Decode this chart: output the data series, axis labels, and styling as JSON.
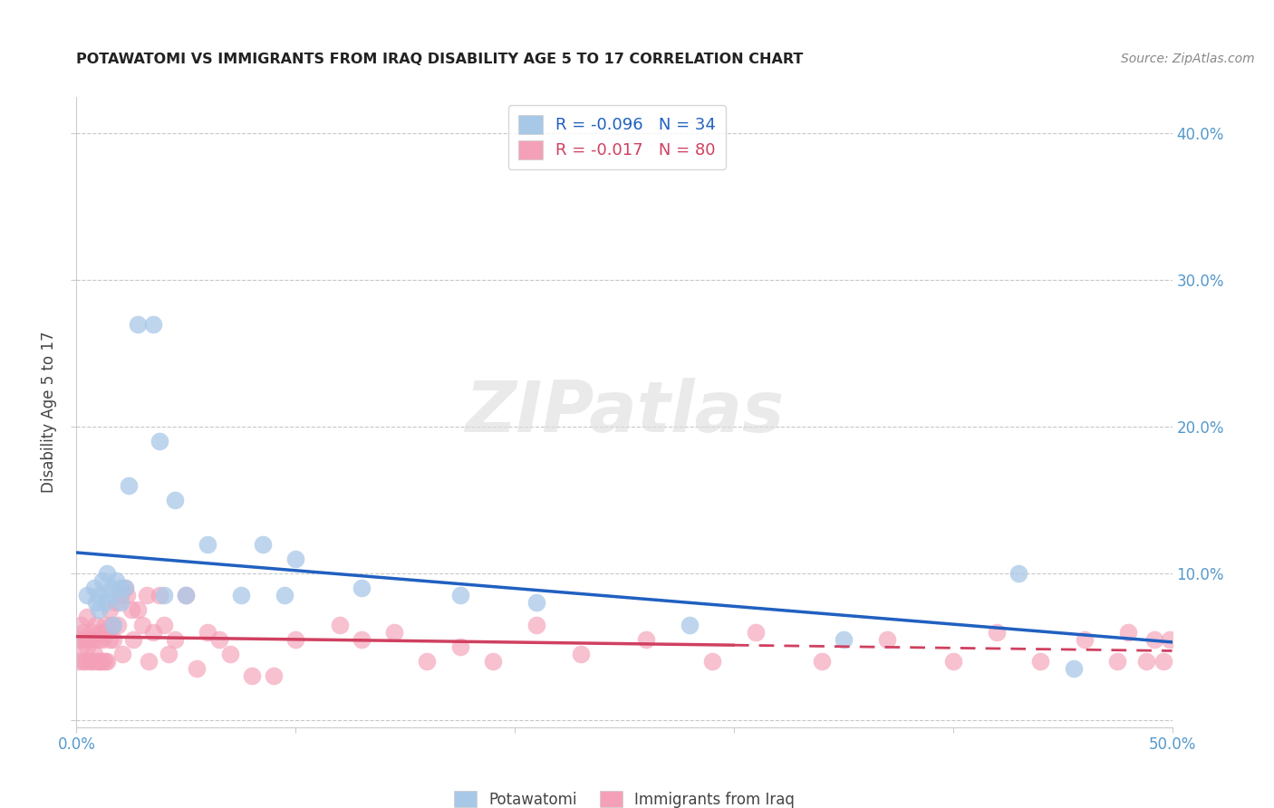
{
  "title": "POTAWATOMI VS IMMIGRANTS FROM IRAQ DISABILITY AGE 5 TO 17 CORRELATION CHART",
  "source": "Source: ZipAtlas.com",
  "ylabel": "Disability Age 5 to 17",
  "xlim": [
    0.0,
    0.5
  ],
  "ylim": [
    -0.005,
    0.425
  ],
  "xticks": [
    0.0,
    0.1,
    0.2,
    0.3,
    0.4,
    0.5
  ],
  "xticklabels": [
    "0.0%",
    "",
    "",
    "",
    "",
    "50.0%"
  ],
  "yticks": [
    0.0,
    0.1,
    0.2,
    0.3,
    0.4
  ],
  "yticklabels_right": [
    "",
    "10.0%",
    "20.0%",
    "30.0%",
    "40.0%"
  ],
  "legend_r_blue": "R = -0.096",
  "legend_n_blue": "N = 34",
  "legend_r_pink": "R = -0.017",
  "legend_n_pink": "N = 80",
  "blue_color": "#a8c8e8",
  "pink_color": "#f4a0b8",
  "line_blue": "#2060c0",
  "line_pink": "#d04060",
  "grid_color": "#c8c8c8",
  "blue_scatter_x": [
    0.005,
    0.008,
    0.009,
    0.01,
    0.01,
    0.012,
    0.013,
    0.014,
    0.015,
    0.016,
    0.017,
    0.018,
    0.02,
    0.02,
    0.022,
    0.024,
    0.028,
    0.035,
    0.038,
    0.04,
    0.045,
    0.05,
    0.06,
    0.075,
    0.085,
    0.095,
    0.1,
    0.13,
    0.175,
    0.21,
    0.28,
    0.35,
    0.43,
    0.455
  ],
  "blue_scatter_y": [
    0.085,
    0.09,
    0.08,
    0.085,
    0.075,
    0.095,
    0.08,
    0.1,
    0.085,
    0.09,
    0.065,
    0.095,
    0.09,
    0.08,
    0.09,
    0.16,
    0.27,
    0.27,
    0.19,
    0.085,
    0.15,
    0.085,
    0.12,
    0.085,
    0.12,
    0.085,
    0.11,
    0.09,
    0.085,
    0.08,
    0.065,
    0.055,
    0.1,
    0.035
  ],
  "pink_scatter_x": [
    0.001,
    0.001,
    0.002,
    0.002,
    0.003,
    0.003,
    0.004,
    0.004,
    0.005,
    0.005,
    0.006,
    0.006,
    0.007,
    0.007,
    0.008,
    0.008,
    0.009,
    0.009,
    0.01,
    0.01,
    0.011,
    0.011,
    0.012,
    0.012,
    0.013,
    0.013,
    0.014,
    0.014,
    0.015,
    0.015,
    0.016,
    0.017,
    0.018,
    0.019,
    0.02,
    0.021,
    0.022,
    0.023,
    0.025,
    0.026,
    0.028,
    0.03,
    0.032,
    0.033,
    0.035,
    0.038,
    0.04,
    0.042,
    0.045,
    0.05,
    0.055,
    0.06,
    0.065,
    0.07,
    0.08,
    0.09,
    0.1,
    0.12,
    0.13,
    0.145,
    0.16,
    0.175,
    0.19,
    0.21,
    0.23,
    0.26,
    0.29,
    0.31,
    0.34,
    0.37,
    0.4,
    0.42,
    0.44,
    0.46,
    0.475,
    0.48,
    0.488,
    0.492,
    0.496,
    0.499
  ],
  "pink_scatter_y": [
    0.055,
    0.04,
    0.065,
    0.05,
    0.04,
    0.06,
    0.055,
    0.04,
    0.07,
    0.05,
    0.055,
    0.04,
    0.06,
    0.04,
    0.055,
    0.045,
    0.065,
    0.04,
    0.055,
    0.04,
    0.06,
    0.04,
    0.055,
    0.04,
    0.065,
    0.04,
    0.06,
    0.04,
    0.075,
    0.055,
    0.065,
    0.055,
    0.08,
    0.065,
    0.085,
    0.045,
    0.09,
    0.085,
    0.075,
    0.055,
    0.075,
    0.065,
    0.085,
    0.04,
    0.06,
    0.085,
    0.065,
    0.045,
    0.055,
    0.085,
    0.035,
    0.06,
    0.055,
    0.045,
    0.03,
    0.03,
    0.055,
    0.065,
    0.055,
    0.06,
    0.04,
    0.05,
    0.04,
    0.065,
    0.045,
    0.055,
    0.04,
    0.06,
    0.04,
    0.055,
    0.04,
    0.06,
    0.04,
    0.055,
    0.04,
    0.06,
    0.04,
    0.055,
    0.04,
    0.055
  ],
  "legend_label1": "Potawatomi",
  "legend_label2": "Immigrants from Iraq"
}
